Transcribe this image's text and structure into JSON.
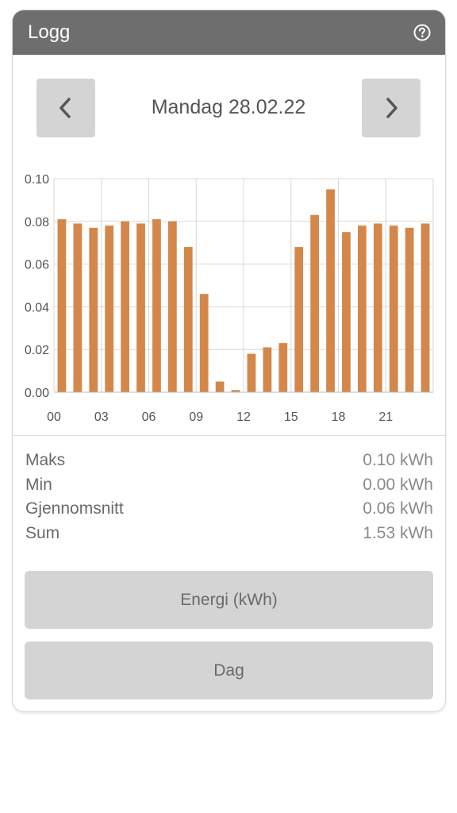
{
  "header": {
    "title": "Logg",
    "help_icon": "question-circle-icon"
  },
  "nav": {
    "date": "Mandag 28.02.22",
    "prev_icon": "chevron-left-icon",
    "next_icon": "chevron-right-icon"
  },
  "chart_data": {
    "type": "bar",
    "x": [
      0,
      1,
      2,
      3,
      4,
      5,
      6,
      7,
      8,
      9,
      10,
      11,
      12,
      13,
      14,
      15,
      16,
      17,
      18,
      19,
      20,
      21,
      22,
      23
    ],
    "values": [
      0.081,
      0.079,
      0.077,
      0.078,
      0.08,
      0.079,
      0.081,
      0.08,
      0.068,
      0.046,
      0.005,
      0.001,
      0.018,
      0.021,
      0.023,
      0.068,
      0.083,
      0.095,
      0.075,
      0.078,
      0.079,
      0.078,
      0.077,
      0.079
    ],
    "xtick_labels": [
      "00",
      "03",
      "06",
      "09",
      "12",
      "15",
      "18",
      "21"
    ],
    "ytick_labels": [
      "0.00",
      "0.02",
      "0.04",
      "0.06",
      "0.08",
      "0.10"
    ],
    "ylim": [
      0,
      0.1
    ],
    "grid": true,
    "bar_color": "#d3874a"
  },
  "stats": [
    {
      "label": "Maks",
      "value": "0.10 kWh"
    },
    {
      "label": "Min",
      "value": "0.00 kWh"
    },
    {
      "label": "Gjennomsnitt",
      "value": "0.06 kWh"
    },
    {
      "label": "Sum",
      "value": "1.53 kWh"
    }
  ],
  "buttons": {
    "unit": "Energi (kWh)",
    "period": "Dag"
  },
  "colors": {
    "header_bg": "#6e6e6e",
    "button_bg": "#d4d4d4",
    "bar": "#d3874a"
  }
}
